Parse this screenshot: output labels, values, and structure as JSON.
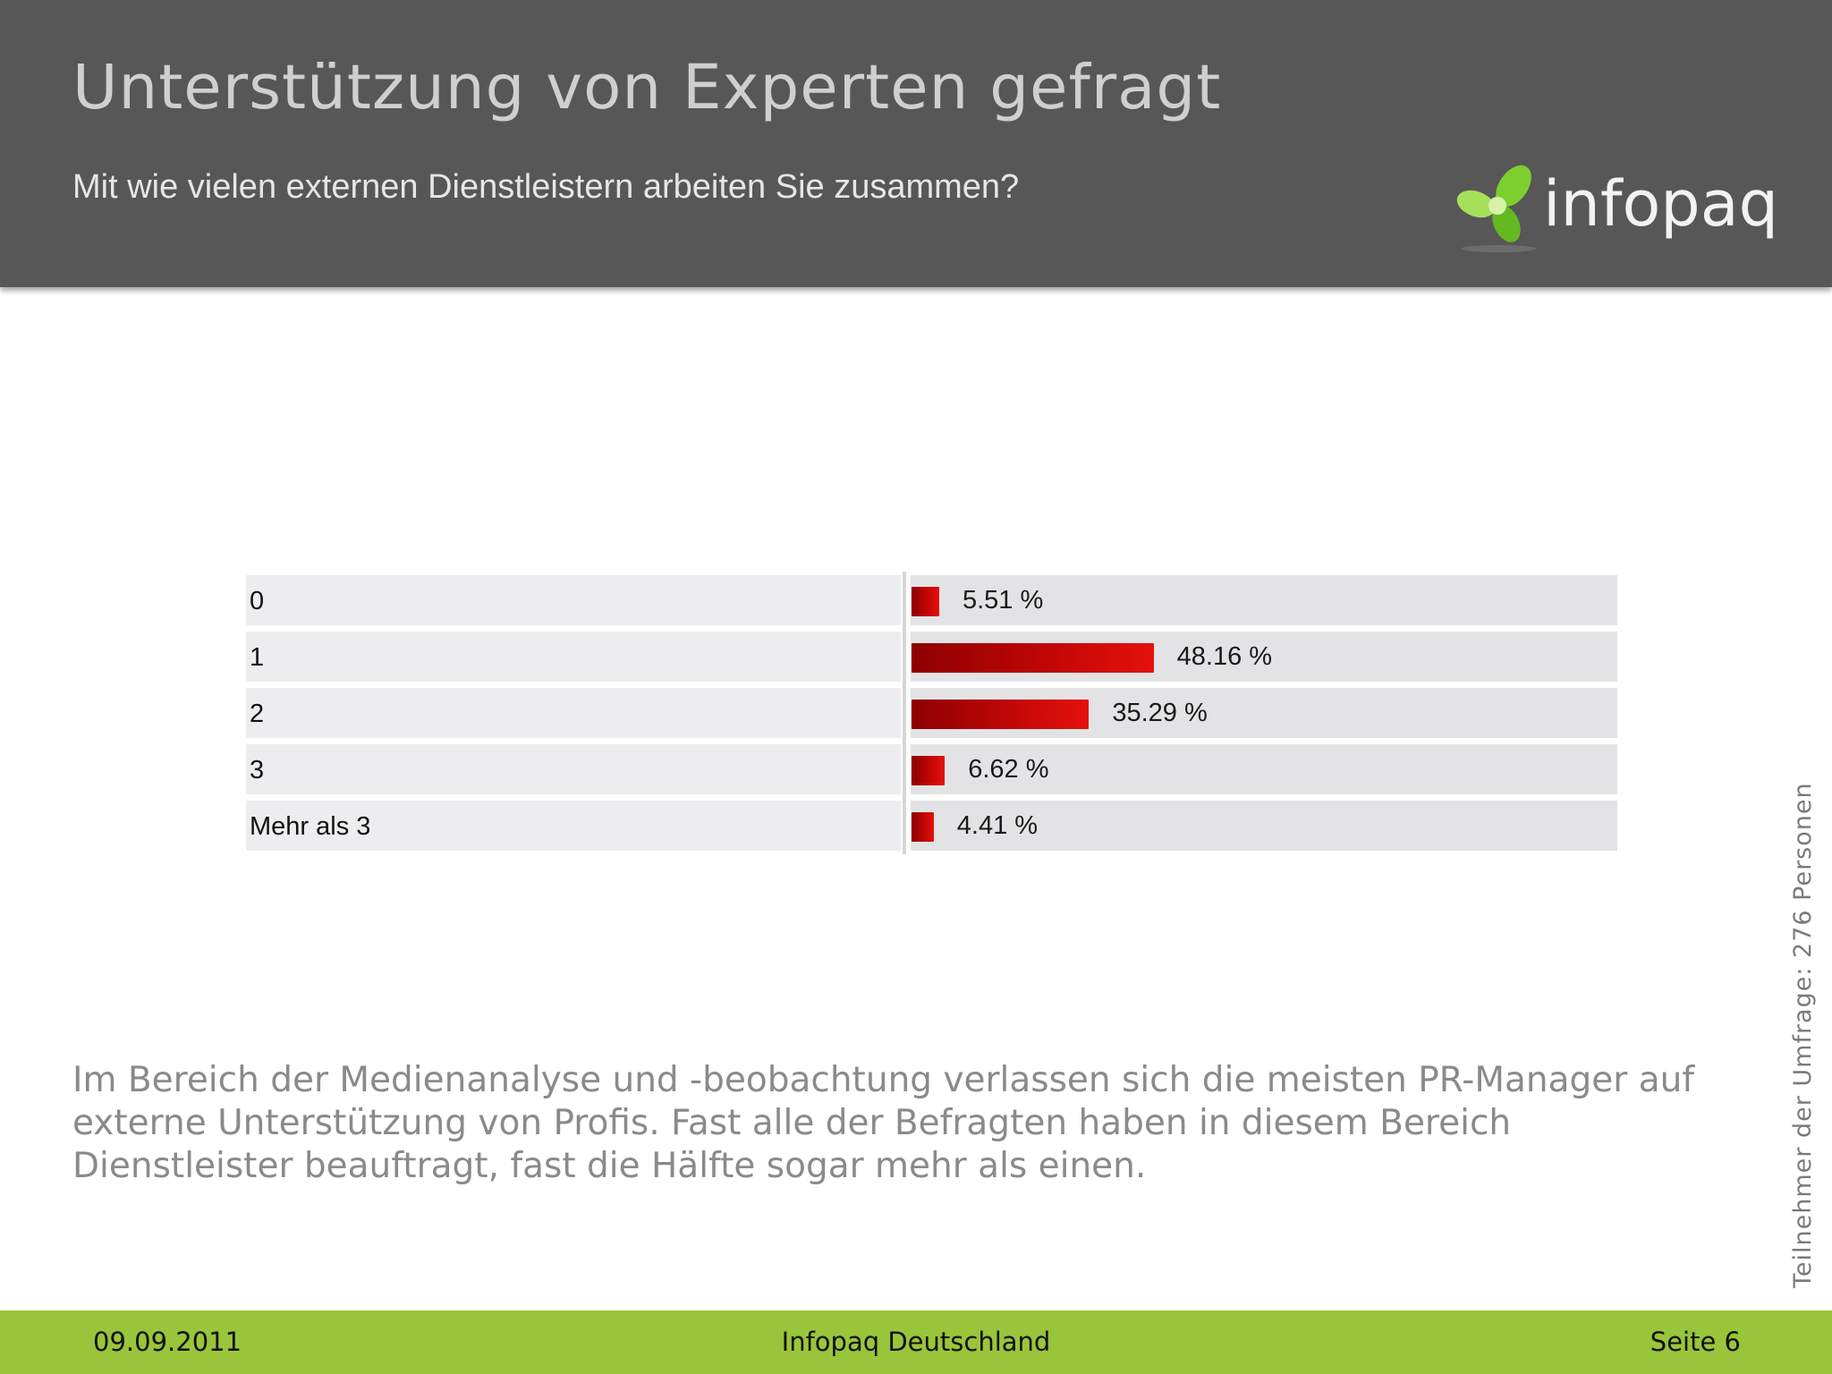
{
  "header": {
    "title": "Unterstützung von Experten gefragt",
    "subtitle": "Mit wie vielen externen Dienstleistern arbeiten Sie zusammen?",
    "logo_text": "infopaq"
  },
  "chart_data": {
    "type": "bar",
    "orientation": "horizontal",
    "categories": [
      "0",
      "1",
      "2",
      "3",
      "Mehr als 3"
    ],
    "values": [
      5.51,
      48.16,
      35.29,
      6.62,
      4.41
    ],
    "value_labels": [
      "5.51 %",
      "48.16 %",
      "35.29 %",
      "6.62 %",
      "4.41 %"
    ],
    "xlim": [
      0,
      100
    ],
    "bar_color": "#c00606"
  },
  "body": {
    "text": "Im Bereich der Medienanalyse und -beobachtung verlassen sich die meisten PR-Manager auf externe Unterstützung von Profis. Fast alle der Befragten haben in diesem Bereich Dienstleister beauftragt, fast die Hälfte sogar mehr als einen."
  },
  "side_note": "Teilnehmer der Umfrage: 276 Personen",
  "footer": {
    "date": "09.09.2011",
    "company": "Infopaq Deutschland",
    "page": "Seite 6"
  },
  "colors": {
    "header_bg": "#575757",
    "footer_bg": "#99c53a",
    "logo_green": "#8fd13a"
  }
}
